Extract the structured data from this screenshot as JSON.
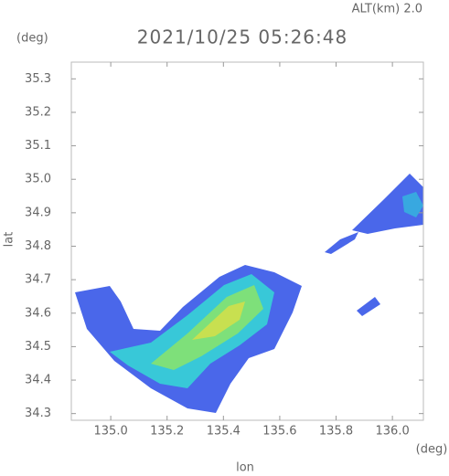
{
  "chart_data": {
    "type": "radar-map",
    "altitude_label": "ALT(km) 2.0",
    "title": "2021/10/25 05:26:48",
    "y_unit": "(deg)",
    "x_unit": "(deg)",
    "ylabel": "lat",
    "xlabel": "lon",
    "xlim": [
      134.86,
      136.11
    ],
    "xticks": [
      {
        "value": 135.0,
        "label": "135.0"
      },
      135.2,
      135.4,
      135.6,
      135.8,
      {
        "value": 136.0,
        "label": "136.0"
      }
    ],
    "ylim": [
      34.28,
      35.35
    ],
    "yticks": [
      34.3,
      34.4,
      34.5,
      34.6,
      34.7,
      34.8,
      34.9,
      {
        "value": 35.0,
        "label": "35.0"
      },
      35.1,
      35.2,
      35.3
    ]
  }
}
